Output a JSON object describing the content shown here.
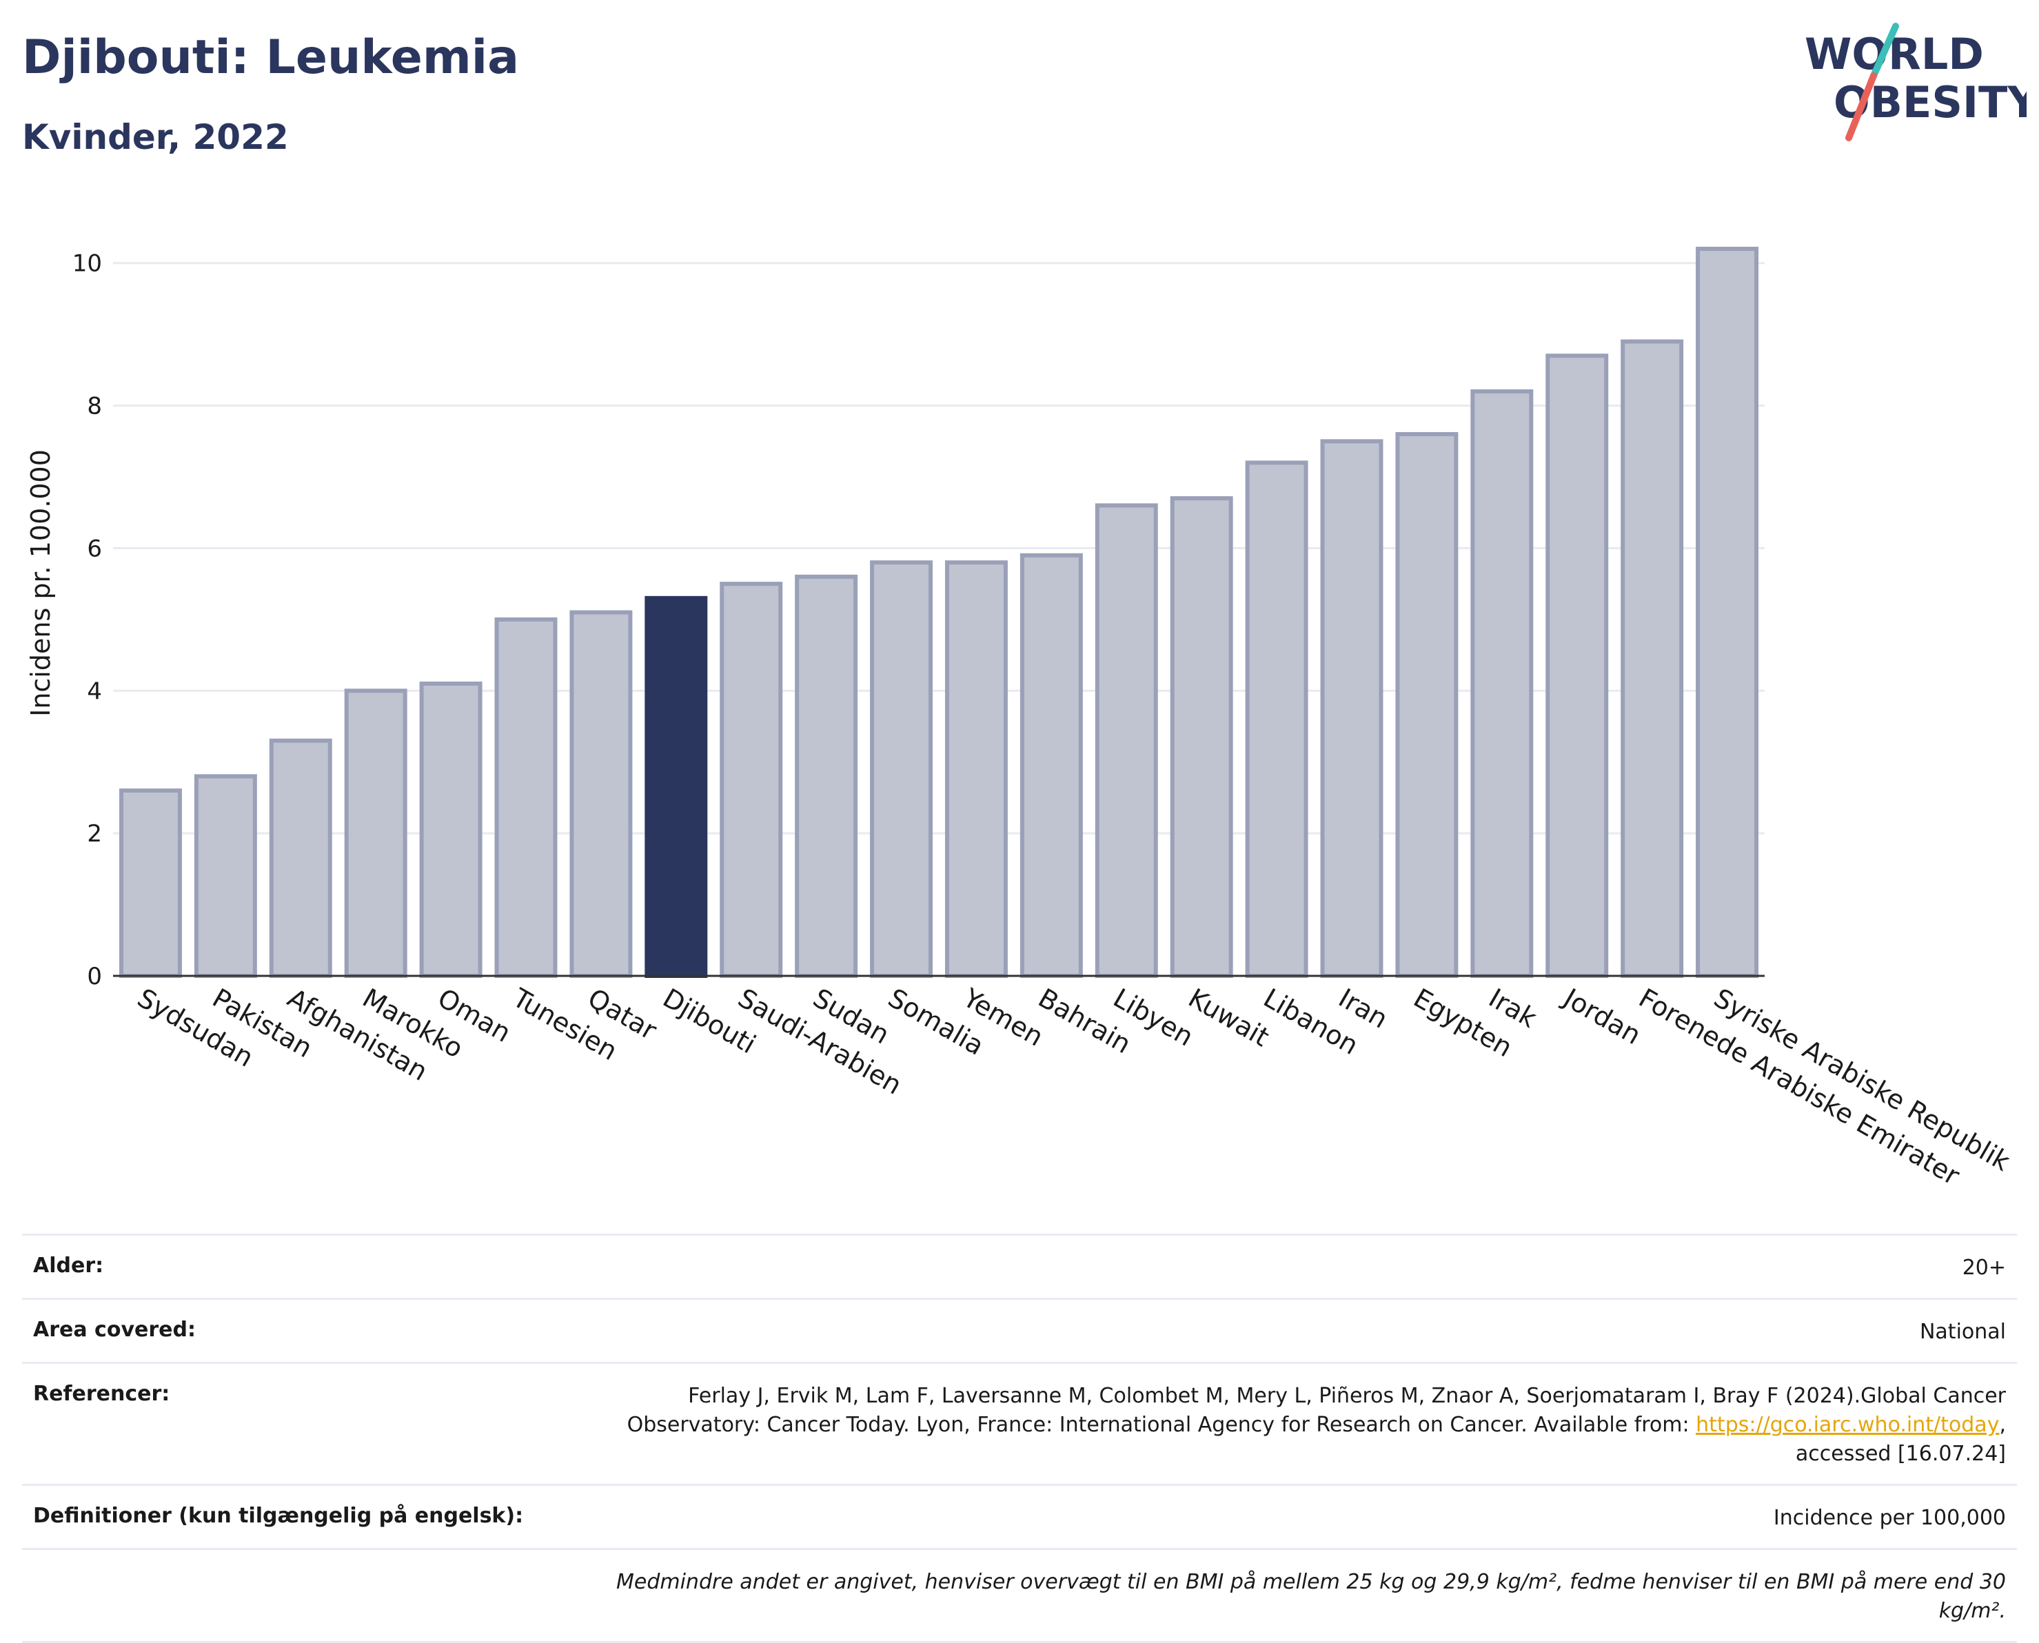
{
  "header": {
    "title": "Djibouti: Leukemia",
    "subtitle": "Kvinder, 2022",
    "logo_line1": "WORLD",
    "logo_line2": "OBESITY"
  },
  "colors": {
    "bar": "#c0c3d0",
    "bar_stroke": "#9aa0b8",
    "highlight": "#2b365e",
    "grid": "#e8eaf0",
    "text": "#2b365e",
    "logo_teal": "#3bbfb7",
    "logo_red": "#e8625a"
  },
  "chart_data": {
    "type": "bar",
    "title": "Djibouti: Leukemia",
    "subtitle": "Kvinder, 2022",
    "ylabel": "Incidens pr. 100.000",
    "xlabel": "",
    "ylim": [
      0,
      10.5
    ],
    "yticks": [
      0,
      2,
      4,
      6,
      8,
      10
    ],
    "grid": true,
    "highlight": "Djibouti",
    "categories": [
      "Sydsudan",
      "Pakistan",
      "Afghanistan",
      "Marokko",
      "Oman",
      "Tunesien",
      "Qatar",
      "Djibouti",
      "Saudi-Arabien",
      "Sudan",
      "Somalia",
      "Yemen",
      "Bahrain",
      "Libyen",
      "Kuwait",
      "Libanon",
      "Iran",
      "Egypten",
      "Irak",
      "Jordan",
      "Forenede Arabiske Emirater",
      "Syriske Arabiske Republik"
    ],
    "values": [
      2.6,
      2.8,
      3.3,
      4.0,
      4.1,
      5.0,
      5.1,
      5.3,
      5.5,
      5.6,
      5.8,
      5.8,
      5.9,
      6.6,
      6.7,
      7.2,
      7.5,
      7.6,
      8.2,
      8.7,
      8.9,
      10.2
    ]
  },
  "meta": {
    "age_label": "Alder:",
    "age_value": "20+",
    "area_label": "Area covered:",
    "area_value": "National",
    "ref_label": "Referencer:",
    "ref_text_1": "Ferlay J, Ervik M, Lam F, Laversanne M, Colombet M, Mery L, Piñeros M, Znaor A, Soerjomataram I, Bray F (2024).Global Cancer Observatory: Cancer Today. Lyon, France: International Agency for Research on Cancer. Available from: ",
    "ref_link": "https://gco.iarc.who.int/today",
    "ref_text_2": ", accessed [16.07.24]",
    "def_label": "Definitioner (kun tilgængelig på engelsk):",
    "def_value": "Incidence per 100,000",
    "note": "Medmindre andet er angivet, henviser overvægt til en BMI på mellem 25 kg og 29,9 kg/m², fedme henviser til en BMI på mere end 30 kg/m²."
  }
}
